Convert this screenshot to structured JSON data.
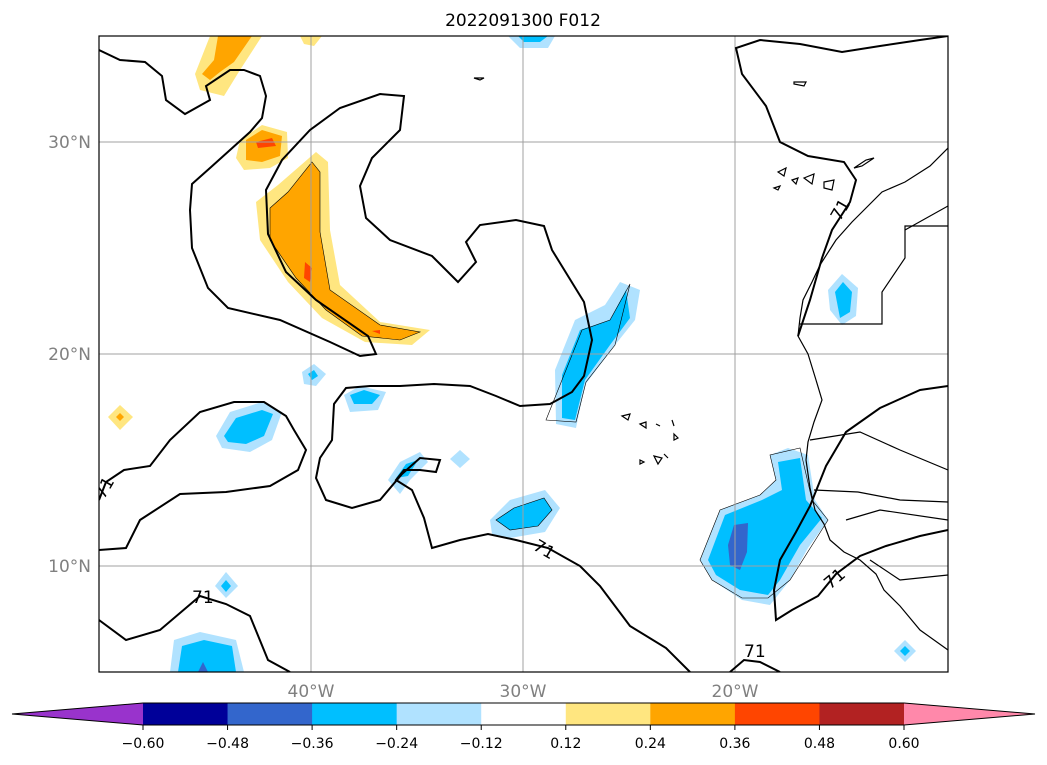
{
  "chart_data": {
    "type": "contour-map",
    "title": "2022091300 F012",
    "lat_labels": [
      "30°N",
      "20°N",
      "10°N"
    ],
    "lon_labels": [
      "40°W",
      "30°W",
      "20°W"
    ],
    "extent": {
      "lon": [
        -50,
        -10
      ],
      "lat": [
        5,
        35
      ]
    },
    "grid": true,
    "contour_label": "71",
    "colorbar": {
      "ticks": [
        "−0.60",
        "−0.48",
        "−0.36",
        "−0.24",
        "−0.12",
        "0.12",
        "0.24",
        "0.36",
        "0.48",
        "0.60"
      ],
      "bins": [
        {
          "range": "< -0.60",
          "color": "#9933cc"
        },
        {
          "range": "-0.60 to -0.48",
          "color": "#000099"
        },
        {
          "range": "-0.48 to -0.36",
          "color": "#3366cc"
        },
        {
          "range": "-0.36 to -0.24",
          "color": "#00bfff"
        },
        {
          "range": "-0.24 to -0.12",
          "color": "#b0e2ff"
        },
        {
          "range": "-0.12 to 0.12",
          "color": "#ffffff"
        },
        {
          "range": "0.12 to 0.24",
          "color": "#ffe680"
        },
        {
          "range": "0.24 to 0.36",
          "color": "#ffa500"
        },
        {
          "range": "0.36 to 0.48",
          "color": "#ff4500"
        },
        {
          "range": "0.48 to 0.60",
          "color": "#b22222"
        },
        {
          "range": "> 0.60",
          "color": "#ff88aa"
        }
      ]
    },
    "positive_regions": [
      {
        "name": "crescent-band",
        "peak": 0.42,
        "lat": 25,
        "lon": -41
      },
      {
        "name": "cell-31N",
        "peak": 0.45,
        "lat": 30,
        "lon": -43
      },
      {
        "name": "cell-34N",
        "peak": 0.4,
        "lat": 34,
        "lon": -44
      },
      {
        "name": "dot-17N",
        "peak": 0.16,
        "lat": 17,
        "lon": -49
      }
    ],
    "negative_regions": [
      {
        "name": "east-atlantic",
        "min": -0.42,
        "lat": 11,
        "lon": -19
      },
      {
        "name": "east-22N",
        "min": -0.3,
        "lat": 22,
        "lon": -15
      },
      {
        "name": "central-band",
        "min": -0.3,
        "lat": 20,
        "lon": -27
      },
      {
        "name": "west-17N",
        "min": -0.3,
        "lat": 17,
        "lon": -44
      },
      {
        "name": "mid-12N",
        "min": -0.3,
        "lat": 12,
        "lon": -30
      },
      {
        "name": "south-6N",
        "min": -0.4,
        "lat": 6,
        "lon": -45
      }
    ]
  },
  "colors": {
    "frame": "#000000",
    "grid": "#a0a0a0",
    "contour": "#000000"
  }
}
